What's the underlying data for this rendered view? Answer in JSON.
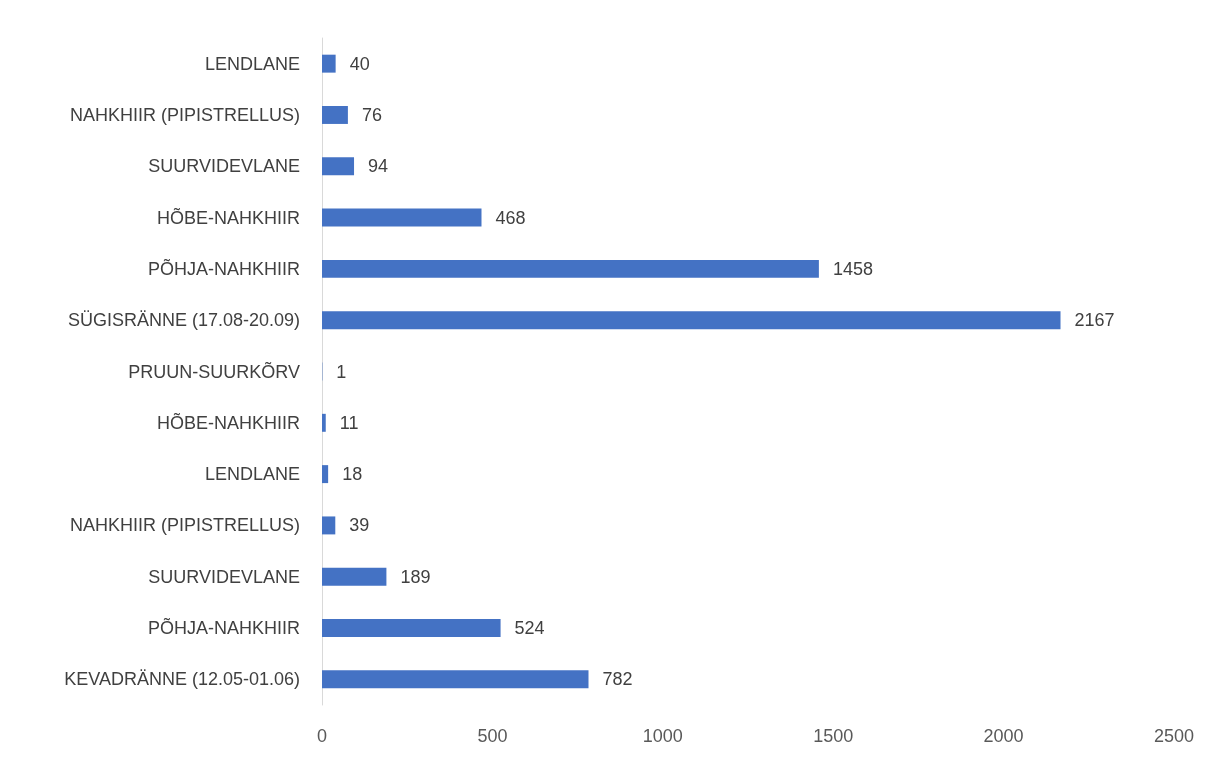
{
  "chart_data": {
    "type": "bar",
    "orientation": "horizontal",
    "categories": [
      "LENDLANE",
      "NAHKHIIR (PIPISTRELLUS)",
      "SUURVIDEVLANE",
      "HÕBE-NAHKHIIR",
      "PÕHJA-NAHKHIIR",
      "SÜGISRÄNNE (17.08-20.09)",
      "PRUUN-SUURKÕRV",
      "HÕBE-NAHKHIIR",
      "LENDLANE",
      "NAHKHIIR (PIPISTRELLUS)",
      "SUURVIDEVLANE",
      "PÕHJA-NAHKHIIR",
      "KEVADRÄNNE (12.05-01.06)"
    ],
    "values": [
      40,
      76,
      94,
      468,
      1458,
      2167,
      1,
      11,
      18,
      39,
      189,
      524,
      782
    ],
    "color": "#4472c4",
    "xlim": [
      0,
      2500
    ],
    "xticks": [
      0,
      500,
      1000,
      1500,
      2000,
      2500
    ],
    "grid": false,
    "data_labels": true
  }
}
